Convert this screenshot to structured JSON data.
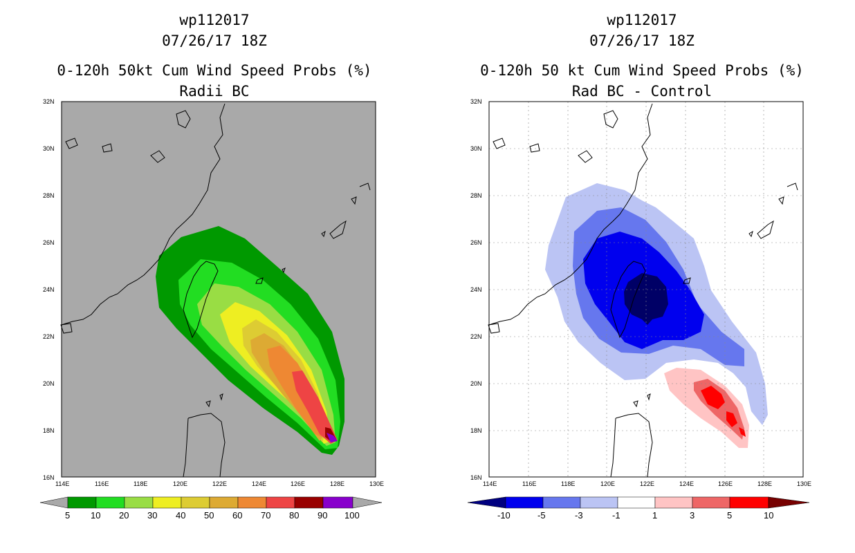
{
  "panels": [
    {
      "id": "left",
      "title_lines": [
        "wp112017",
        "07/26/17 18Z",
        "0-120h 50kt Cum Wind Speed Probs (%)",
        "Radii BC"
      ],
      "background": "#a9a9a9",
      "colorbar": {
        "colors": [
          "#009900",
          "#22dd22",
          "#99dd44",
          "#eeee22",
          "#ddcc33",
          "#ddaa33",
          "#ee8833",
          "#ee4444",
          "#990000",
          "#8800cc"
        ],
        "labels": [
          "5",
          "10",
          "20",
          "30",
          "40",
          "50",
          "60",
          "70",
          "80",
          "90",
          "100"
        ],
        "end_arrow_color": "#a9a9a9"
      }
    },
    {
      "id": "right",
      "title_lines": [
        "wp112017",
        "07/26/17 18Z",
        "0-120h 50 kt Cum Wind Speed Probs (%)",
        "Rad BC - Control"
      ],
      "background": "#ffffff",
      "colorbar": {
        "colors": [
          "#0000ee",
          "#6677ee",
          "#bbc4f4",
          "#ffffff",
          "#ffc4c4",
          "#ee6666",
          "#ff0000"
        ],
        "labels": [
          "-10",
          "-5",
          "-3",
          "-1",
          "1",
          "3",
          "5",
          "10"
        ],
        "left_arrow_color": "#000080",
        "right_arrow_color": "#770000"
      }
    }
  ],
  "axes": {
    "lon_labels": [
      "114E",
      "116E",
      "118E",
      "120E",
      "122E",
      "124E",
      "126E",
      "128E",
      "130E"
    ],
    "lat_labels": [
      "16N",
      "18N",
      "20N",
      "22N",
      "24N",
      "26N",
      "28N",
      "30N",
      "32N"
    ]
  },
  "colors": {
    "pct5": "#009900",
    "pct10": "#22dd22",
    "pct20": "#99dd44",
    "pct30": "#eeee22",
    "pct40": "#ddcc33",
    "pct50": "#ddaa33",
    "pct60": "#ee8833",
    "pct70": "#ee4444",
    "pct80": "#990000",
    "pct90": "#8800cc",
    "neg1": "#bbc4f4",
    "neg3": "#6677ee",
    "neg5": "#0000ee",
    "neg10": "#000066",
    "pos1": "#ffc4c4",
    "pos3": "#ee6666",
    "pos5": "#ff0000"
  }
}
